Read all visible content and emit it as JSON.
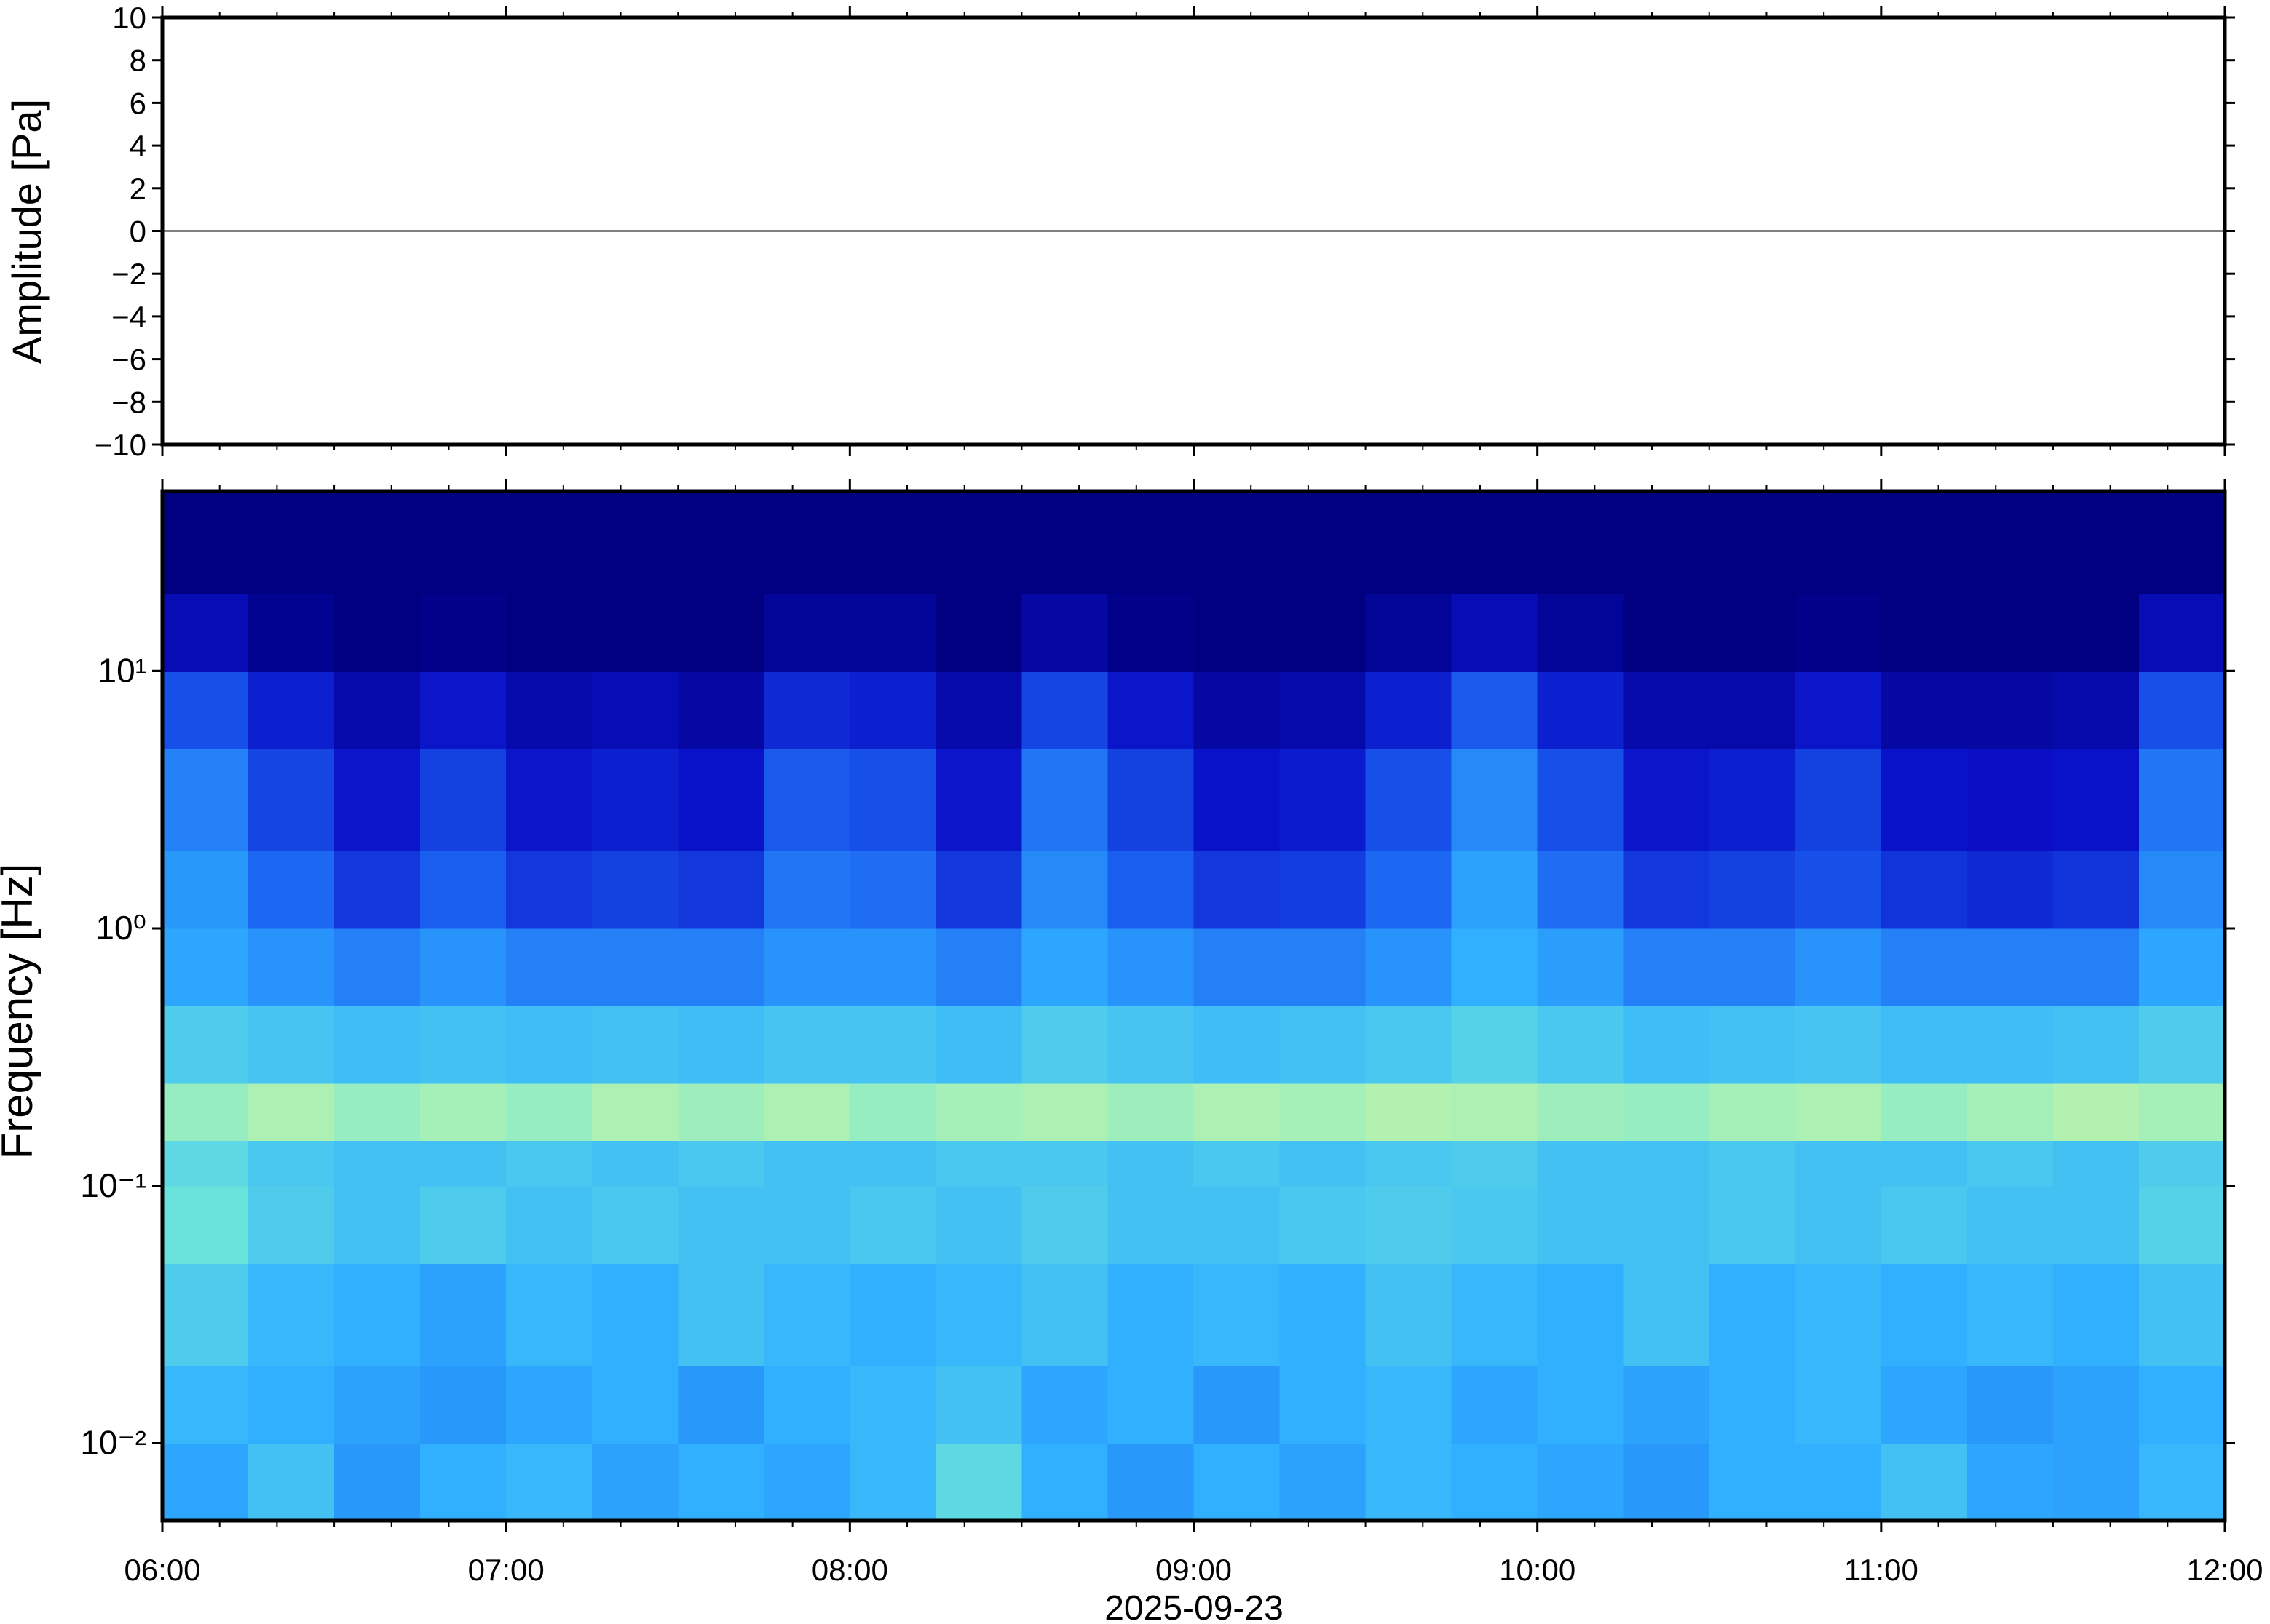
{
  "chart_data": [
    {
      "type": "line",
      "ylabel": "Amplitude [Pa]",
      "color": "#000000",
      "x": [
        6,
        6.5,
        7,
        7.5,
        8,
        8.5,
        9,
        9.5,
        10,
        10.5,
        11,
        11.5,
        12
      ],
      "values": [
        0,
        0,
        0,
        0,
        0,
        0,
        0,
        0,
        0,
        0,
        0,
        0,
        0
      ],
      "xlim": [
        6,
        12
      ],
      "ylim": [
        -10,
        10
      ],
      "yticks": [
        {
          "value": -10,
          "label": "−10"
        },
        {
          "value": -8,
          "label": "−8"
        },
        {
          "value": -6,
          "label": "−6"
        },
        {
          "value": -4,
          "label": "−4"
        },
        {
          "value": -2,
          "label": "−2"
        },
        0,
        2,
        4,
        6,
        8,
        10
      ]
    },
    {
      "type": "heatmap",
      "ylabel": "Frequency [Hz]",
      "xlabel": "2025-09-23",
      "log_y": true,
      "xlim": [
        6,
        12
      ],
      "xticks": [
        {
          "value": 6,
          "label": "06:00"
        },
        {
          "value": 7,
          "label": "07:00"
        },
        {
          "value": 8,
          "label": "08:00"
        },
        {
          "value": 9,
          "label": "09:00"
        },
        {
          "value": 10,
          "label": "10:00"
        },
        {
          "value": 11,
          "label": "11:00"
        },
        {
          "value": 12,
          "label": "12:00"
        }
      ],
      "ylim": [
        0.005,
        50
      ],
      "yticks": [
        {
          "value": 0.01,
          "label": "10⁻²"
        },
        {
          "value": 0.1,
          "label": "10⁻¹"
        },
        {
          "value": 1,
          "label": "10⁰"
        },
        {
          "value": 10,
          "label": "10¹"
        }
      ],
      "colormap": [
        "#000080",
        "#0a10c8",
        "#1a60f0",
        "#30b0ff",
        "#70e8d8",
        "#e8f890",
        "#f08040"
      ],
      "x_bins": [
        6,
        6.25,
        6.5,
        6.75,
        7,
        7.25,
        7.5,
        7.75,
        8,
        8.25,
        8.5,
        8.75,
        9,
        9.25,
        9.5,
        9.75,
        10,
        10.25,
        10.5,
        10.75,
        11,
        11.25,
        11.5,
        11.75,
        12
      ],
      "y_bins": [
        0.005,
        0.01,
        0.02,
        0.05,
        0.1,
        0.15,
        0.25,
        0.5,
        1,
        2,
        5,
        10,
        20,
        50
      ],
      "values": [
        [
          0.48,
          0.55,
          0.45,
          0.5,
          0.52,
          0.47,
          0.5,
          0.48,
          0.52,
          0.62,
          0.5,
          0.45,
          0.5,
          0.47,
          0.52,
          0.5,
          0.48,
          0.45,
          0.5,
          0.5,
          0.55,
          0.48,
          0.47,
          0.52
        ],
        [
          0.52,
          0.5,
          0.47,
          0.45,
          0.48,
          0.5,
          0.45,
          0.5,
          0.52,
          0.55,
          0.48,
          0.5,
          0.45,
          0.5,
          0.52,
          0.48,
          0.5,
          0.47,
          0.5,
          0.52,
          0.48,
          0.45,
          0.47,
          0.5
        ],
        [
          0.58,
          0.52,
          0.5,
          0.47,
          0.52,
          0.5,
          0.55,
          0.52,
          0.5,
          0.52,
          0.55,
          0.5,
          0.52,
          0.5,
          0.55,
          0.52,
          0.5,
          0.55,
          0.5,
          0.52,
          0.5,
          0.52,
          0.5,
          0.55
        ],
        [
          0.65,
          0.58,
          0.55,
          0.58,
          0.55,
          0.57,
          0.55,
          0.55,
          0.57,
          0.55,
          0.58,
          0.55,
          0.55,
          0.57,
          0.58,
          0.57,
          0.55,
          0.55,
          0.57,
          0.55,
          0.57,
          0.55,
          0.55,
          0.6
        ],
        [
          0.62,
          0.57,
          0.55,
          0.55,
          0.57,
          0.55,
          0.57,
          0.55,
          0.55,
          0.57,
          0.57,
          0.55,
          0.57,
          0.55,
          0.57,
          0.58,
          0.55,
          0.55,
          0.57,
          0.55,
          0.55,
          0.57,
          0.55,
          0.58
        ],
        [
          0.72,
          0.75,
          0.72,
          0.74,
          0.72,
          0.75,
          0.73,
          0.75,
          0.72,
          0.74,
          0.75,
          0.73,
          0.75,
          0.74,
          0.76,
          0.75,
          0.73,
          0.72,
          0.74,
          0.75,
          0.72,
          0.74,
          0.76,
          0.74
        ],
        [
          0.58,
          0.56,
          0.54,
          0.55,
          0.54,
          0.55,
          0.54,
          0.56,
          0.56,
          0.54,
          0.58,
          0.56,
          0.54,
          0.55,
          0.57,
          0.6,
          0.57,
          0.54,
          0.55,
          0.56,
          0.54,
          0.54,
          0.55,
          0.58
        ],
        [
          0.48,
          0.44,
          0.4,
          0.44,
          0.4,
          0.4,
          0.4,
          0.44,
          0.44,
          0.4,
          0.48,
          0.44,
          0.4,
          0.4,
          0.44,
          0.5,
          0.46,
          0.4,
          0.4,
          0.44,
          0.4,
          0.4,
          0.4,
          0.48
        ],
        [
          0.45,
          0.35,
          0.25,
          0.33,
          0.25,
          0.27,
          0.25,
          0.38,
          0.36,
          0.25,
          0.42,
          0.33,
          0.25,
          0.26,
          0.35,
          0.47,
          0.36,
          0.25,
          0.27,
          0.3,
          0.24,
          0.22,
          0.24,
          0.42
        ],
        [
          0.4,
          0.28,
          0.18,
          0.27,
          0.18,
          0.2,
          0.17,
          0.32,
          0.3,
          0.18,
          0.38,
          0.27,
          0.17,
          0.19,
          0.3,
          0.42,
          0.3,
          0.18,
          0.2,
          0.27,
          0.17,
          0.16,
          0.17,
          0.38
        ],
        [
          0.3,
          0.2,
          0.1,
          0.18,
          0.1,
          0.12,
          0.08,
          0.22,
          0.2,
          0.1,
          0.28,
          0.18,
          0.08,
          0.1,
          0.2,
          0.32,
          0.2,
          0.1,
          0.1,
          0.18,
          0.08,
          0.08,
          0.1,
          0.3
        ],
        [
          0.12,
          0.04,
          0,
          0.02,
          0,
          0,
          0,
          0.06,
          0.06,
          0,
          0.08,
          0.02,
          0,
          0,
          0.05,
          0.12,
          0.05,
          0,
          0,
          0.02,
          0,
          0,
          0,
          0.12
        ],
        [
          0,
          0,
          0,
          0,
          0,
          0,
          0,
          0,
          0,
          0,
          0,
          0,
          0,
          0,
          0,
          0,
          0,
          0,
          0,
          0,
          0,
          0,
          0,
          0
        ]
      ]
    }
  ]
}
